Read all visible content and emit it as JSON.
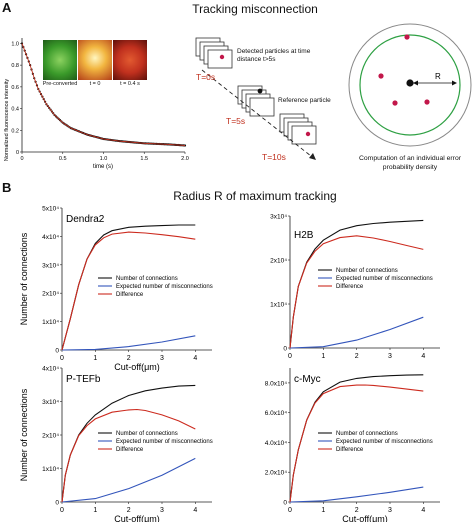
{
  "panel_a": {
    "letter": "A",
    "title": "Tracking misconnection",
    "decay_chart": {
      "ylabel": "Normalized fluorescence intensity",
      "xlabel": "time (s)",
      "y_ticks": [
        "1.0",
        "0.8",
        "0.6",
        "0.4",
        "0.2",
        "0"
      ],
      "x_ticks": [
        "0",
        "0.5",
        "1.0",
        "1.5",
        "2.0"
      ],
      "images": [
        {
          "label": "Pre-converted",
          "color": "#3a9a2a"
        },
        {
          "label": "t = 0",
          "color": "#e8a030"
        },
        {
          "label": "t = 0.4 s",
          "color": "#c0301e"
        }
      ]
    },
    "schematic": {
      "detected": "Detected particles at time distance t>5s",
      "reference": "Reference particle",
      "times": [
        "T=0s",
        "T=5s",
        "T=10s"
      ]
    },
    "circle": {
      "radius_label": "R",
      "caption": "Computation of an individual error probability density"
    }
  },
  "panel_b": {
    "letter": "B",
    "title": "Radius R of maximum tracking",
    "legend": [
      "Number of connections",
      "Expected number of misconnections",
      "Difference"
    ],
    "colors": {
      "connections": "#111111",
      "misconnections": "#3355bb",
      "difference": "#cc2a1e"
    }
  },
  "chart_data": [
    {
      "type": "line",
      "title": "",
      "xlabel": "time (s)",
      "ylabel": "Normalized fluorescence intensity",
      "xlim": [
        0,
        2.0
      ],
      "ylim": [
        0,
        1.05
      ],
      "series": [
        {
          "x": [
            0,
            0.05,
            0.1,
            0.15,
            0.2,
            0.3,
            0.4,
            0.5,
            0.6,
            0.8,
            1.0,
            1.2,
            1.5,
            1.8,
            2.0
          ],
          "values": [
            1.0,
            0.9,
            0.8,
            0.68,
            0.58,
            0.44,
            0.34,
            0.27,
            0.22,
            0.16,
            0.12,
            0.1,
            0.08,
            0.07,
            0.06
          ]
        }
      ]
    },
    {
      "type": "line",
      "label": "Dendra2",
      "xlabel": "Cut-off(μm)",
      "ylabel": "Number of connections",
      "xlim": [
        0,
        4.5
      ],
      "ylim": [
        0,
        50000
      ],
      "y_ticks": [
        "0",
        "1x10⁴",
        "2x10⁴",
        "3x10⁴",
        "4x10⁴",
        "5x10⁴"
      ],
      "x_ticks": [
        "0",
        "1",
        "2",
        "3",
        "4"
      ],
      "legend_position": "center-right",
      "series": [
        {
          "name": "Number of connections",
          "x": [
            0,
            0.25,
            0.5,
            0.75,
            1.0,
            1.25,
            1.5,
            2.0,
            2.5,
            3.0,
            3.5,
            4.0
          ],
          "values": [
            0,
            11000,
            23000,
            32000,
            37500,
            40500,
            42000,
            43200,
            43600,
            43800,
            44000,
            44000
          ]
        },
        {
          "name": "Expected number of misconnections",
          "x": [
            0,
            1.0,
            2.0,
            3.0,
            4.0
          ],
          "values": [
            0,
            200,
            1200,
            2800,
            5000
          ]
        },
        {
          "name": "Difference",
          "x": [
            0,
            0.25,
            0.5,
            0.75,
            1.0,
            1.25,
            1.5,
            2.0,
            2.5,
            3.0,
            3.5,
            4.0
          ],
          "values": [
            0,
            11000,
            23000,
            32000,
            37000,
            39500,
            40800,
            41500,
            41200,
            40600,
            39900,
            39000
          ]
        }
      ]
    },
    {
      "type": "line",
      "label": "H2B",
      "xlabel": "",
      "ylabel": "",
      "xlim": [
        0,
        4.5
      ],
      "ylim": [
        0,
        30000
      ],
      "y_ticks": [
        "0",
        "1x10⁴",
        "2x10⁴",
        "3x10⁴"
      ],
      "x_ticks": [
        "0",
        "1",
        "2",
        "3",
        "4"
      ],
      "legend_position": "center-right",
      "series": [
        {
          "name": "Number of connections",
          "x": [
            0,
            0.1,
            0.25,
            0.5,
            0.75,
            1.0,
            1.5,
            2.0,
            2.5,
            3.0,
            3.5,
            4.0
          ],
          "values": [
            0,
            7000,
            14000,
            19500,
            22500,
            24500,
            26800,
            27800,
            28300,
            28600,
            28800,
            29000
          ]
        },
        {
          "name": "Expected number of misconnections",
          "x": [
            0,
            1.0,
            2.0,
            3.0,
            4.0
          ],
          "values": [
            0,
            300,
            1800,
            4200,
            7000
          ]
        },
        {
          "name": "Difference",
          "x": [
            0,
            0.1,
            0.25,
            0.5,
            0.75,
            1.0,
            1.5,
            2.0,
            2.5,
            3.0,
            3.5,
            4.0
          ],
          "values": [
            0,
            7000,
            14000,
            19300,
            22000,
            23700,
            25100,
            25500,
            25000,
            24200,
            23300,
            22400
          ]
        }
      ]
    },
    {
      "type": "line",
      "label": "P-TEFb",
      "xlabel": "Cut-off(μm)",
      "ylabel": "Number of connections",
      "xlim": [
        0,
        4.5
      ],
      "ylim": [
        0,
        40000
      ],
      "y_ticks": [
        "0",
        "1x10⁴",
        "2x10⁴",
        "3x10⁴",
        "4x10⁴"
      ],
      "x_ticks": [
        "0",
        "1",
        "2",
        "3",
        "4"
      ],
      "legend_position": "center-right",
      "series": [
        {
          "name": "Number of connections",
          "x": [
            0,
            0.1,
            0.25,
            0.5,
            0.75,
            1.0,
            1.5,
            2.0,
            2.5,
            3.0,
            3.5,
            4.0
          ],
          "values": [
            0,
            8000,
            14000,
            20000,
            23500,
            26000,
            29500,
            31800,
            33200,
            34000,
            34600,
            34800
          ]
        },
        {
          "name": "Expected number of misconnections",
          "x": [
            0,
            1.0,
            2.0,
            3.0,
            4.0
          ],
          "values": [
            0,
            1000,
            4000,
            8000,
            13000
          ]
        },
        {
          "name": "Difference",
          "x": [
            0,
            0.1,
            0.25,
            0.5,
            0.75,
            1.0,
            1.5,
            2.0,
            2.25,
            2.5,
            3.0,
            3.5,
            4.0
          ],
          "values": [
            0,
            8000,
            14000,
            19800,
            22800,
            24800,
            26800,
            27500,
            27600,
            27300,
            26000,
            24200,
            21800
          ]
        }
      ]
    },
    {
      "type": "line",
      "label": "c-Myc",
      "xlabel": "Cut-off(μm)",
      "ylabel": "",
      "xlim": [
        0,
        4.5
      ],
      "ylim": [
        0,
        90000
      ],
      "y_ticks": [
        "0",
        "2.0x10⁴",
        "4.0x10⁴",
        "6.0x10⁴",
        "8.0x10⁴"
      ],
      "x_ticks": [
        "0",
        "1",
        "2",
        "3",
        "4"
      ],
      "legend_position": "bottom-right",
      "series": [
        {
          "name": "Number of connections",
          "x": [
            0,
            0.1,
            0.25,
            0.5,
            0.75,
            1.0,
            1.5,
            2.0,
            2.5,
            3.0,
            3.5,
            4.0
          ],
          "values": [
            0,
            18000,
            35000,
            55000,
            67000,
            74000,
            80500,
            83000,
            84200,
            84800,
            85200,
            85400
          ]
        },
        {
          "name": "Expected number of misconnections",
          "x": [
            0,
            1.0,
            2.0,
            3.0,
            4.0
          ],
          "values": [
            0,
            800,
            3500,
            6500,
            10000
          ]
        },
        {
          "name": "Difference",
          "x": [
            0,
            0.1,
            0.25,
            0.5,
            0.75,
            1.0,
            1.5,
            2.0,
            2.25,
            2.5,
            3.0,
            3.5,
            4.0
          ],
          "values": [
            0,
            18000,
            35000,
            55000,
            66500,
            72800,
            77500,
            78500,
            78600,
            78300,
            77200,
            75800,
            74500
          ]
        }
      ]
    }
  ]
}
